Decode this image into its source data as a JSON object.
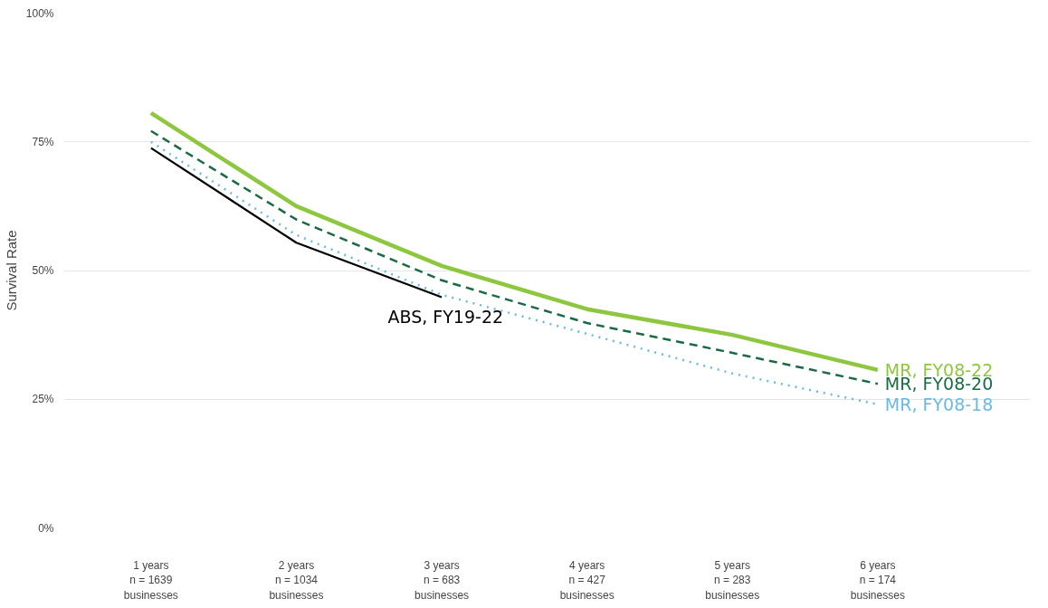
{
  "chart_data": {
    "type": "line",
    "ylabel": "Survival Rate",
    "categories": [
      "1 years\nn = 1639\nbusinesses",
      "2 years\nn = 1034\nbusinesses",
      "3 years\nn = 683\nbusinesses",
      "4 years\nn = 427\nbusinesses",
      "5 years\nn = 283\nbusinesses",
      "6 years\nn = 174\nbusinesses"
    ],
    "ylim": [
      0,
      100
    ],
    "yticks": [
      {
        "value": 0,
        "label": "0%"
      },
      {
        "value": 25,
        "label": "25%"
      },
      {
        "value": 50,
        "label": "50%"
      },
      {
        "value": 75,
        "label": "75%"
      },
      {
        "value": 100,
        "label": "100%"
      }
    ],
    "grid": "y",
    "marker": "none",
    "series": [
      {
        "name": "MR, FY08-18",
        "color": "#6bb8e6",
        "line_style": "dotted",
        "values": [
          75.0,
          56.9,
          45.3,
          37.7,
          30.0,
          24.0
        ]
      },
      {
        "name": "MR, FY08-20",
        "color": "#1a6b45",
        "line_style": "dashed",
        "values": [
          77.1,
          59.9,
          48.1,
          39.8,
          34.0,
          28.0
        ]
      },
      {
        "name": "MR, FY08-22",
        "color": "#8dc63f",
        "line_style": "solid",
        "values": [
          80.6,
          62.5,
          50.9,
          42.5,
          37.5,
          30.7
        ]
      },
      {
        "name": "ABS, FY19-22",
        "color": "#000000",
        "line_style": "solid",
        "values": [
          73.8,
          55.4,
          44.8,
          null,
          null,
          null
        ]
      }
    ]
  }
}
